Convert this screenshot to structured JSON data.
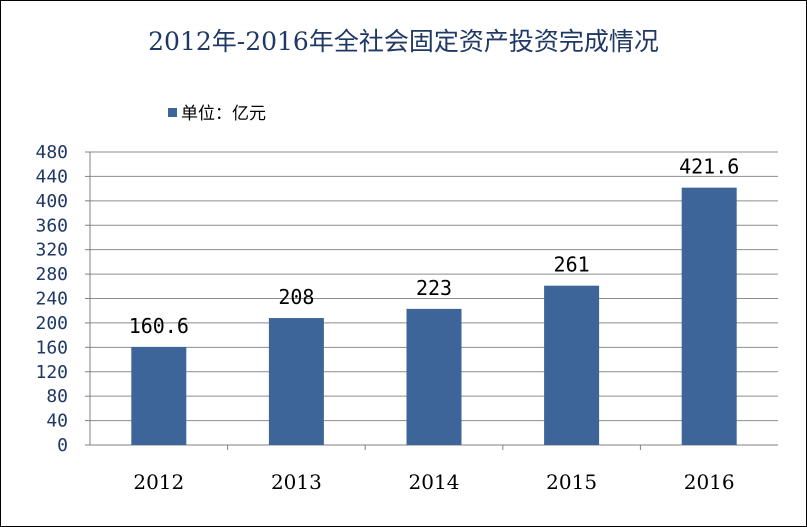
{
  "chart_data": {
    "type": "bar",
    "title": "2012年-2016年全社会固定资产投资完成情况",
    "categories": [
      "2012",
      "2013",
      "2014",
      "2015",
      "2016"
    ],
    "series": [
      {
        "name": "单位：亿元",
        "values": [
          160.6,
          208,
          223,
          261,
          421.6
        ]
      }
    ],
    "data_labels": [
      "160.6",
      "208",
      "223",
      "261",
      "421.6"
    ],
    "yticks": [
      0,
      40,
      80,
      120,
      160,
      200,
      240,
      280,
      320,
      360,
      400,
      440,
      480
    ],
    "ylim": [
      0,
      480
    ],
    "grid": true,
    "legend_position": "top-left",
    "bar_color": "#3d6599",
    "gridline_color": "#8c8c8c"
  }
}
